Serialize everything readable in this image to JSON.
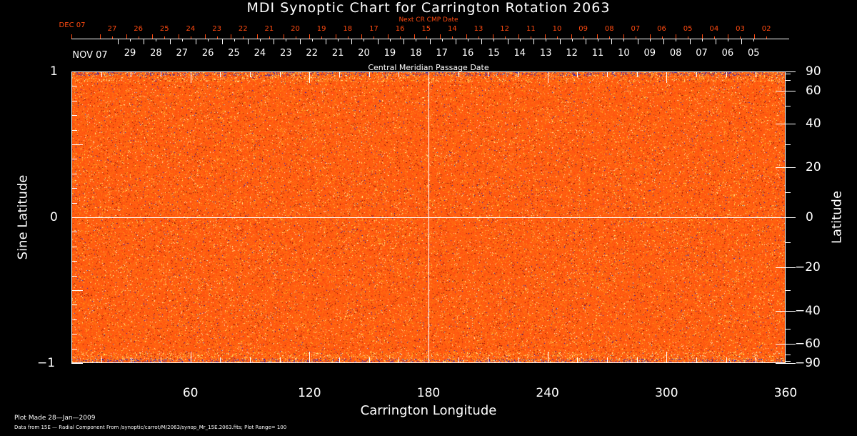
{
  "chart_data": {
    "type": "heatmap",
    "title": "MDI Synoptic Chart for Carrington Rotation 2063",
    "xlabel": "Carrington Longitude",
    "ylabel_left": "Sine Latitude",
    "ylabel_right": "Latitude",
    "xlim": [
      0,
      360
    ],
    "x_ticks": [
      "60",
      "120",
      "180",
      "240",
      "300",
      "360"
    ],
    "y_left_lim": [
      -1,
      1
    ],
    "y_left_ticks": [
      "1",
      "0",
      "−1"
    ],
    "y_right_ticks": [
      "90",
      "60",
      "40",
      "20",
      "0",
      "−20",
      "−40",
      "−60",
      "−90"
    ],
    "y_right_tick_values": [
      90,
      60,
      40,
      20,
      0,
      -20,
      -40,
      -60,
      -90
    ],
    "top_axis_title": "Central Meridian Passage Date",
    "top_axis_month": "NOV 07",
    "top_axis_days": [
      "29",
      "28",
      "27",
      "26",
      "25",
      "24",
      "23",
      "22",
      "21",
      "20",
      "19",
      "18",
      "17",
      "16",
      "15",
      "14",
      "13",
      "12",
      "11",
      "10",
      "09",
      "08",
      "07",
      "06",
      "05"
    ],
    "next_cr_title": "Next CR CMP Date",
    "next_cr_month": "DEC 07",
    "next_cr_days": [
      "27",
      "26",
      "25",
      "24",
      "23",
      "22",
      "21",
      "20",
      "19",
      "18",
      "17",
      "16",
      "15",
      "14",
      "13",
      "12",
      "11",
      "10",
      "09",
      "08",
      "07",
      "06",
      "05",
      "04",
      "03",
      "02"
    ],
    "colors": {
      "base": "#ff4a10",
      "positive": "#ffff80",
      "negative": "#1020c0",
      "axis": "#ffffff",
      "next_cr": "#ff4a10"
    },
    "plot_range": 100
  },
  "footer": {
    "plot_made": "Plot Made 28—Jan—2009",
    "data_from": "Data from 15E — Radial Component From /synoptic/carrot/M/2063/synop_Mr_15E.2063.fits; Plot Range=  100"
  }
}
